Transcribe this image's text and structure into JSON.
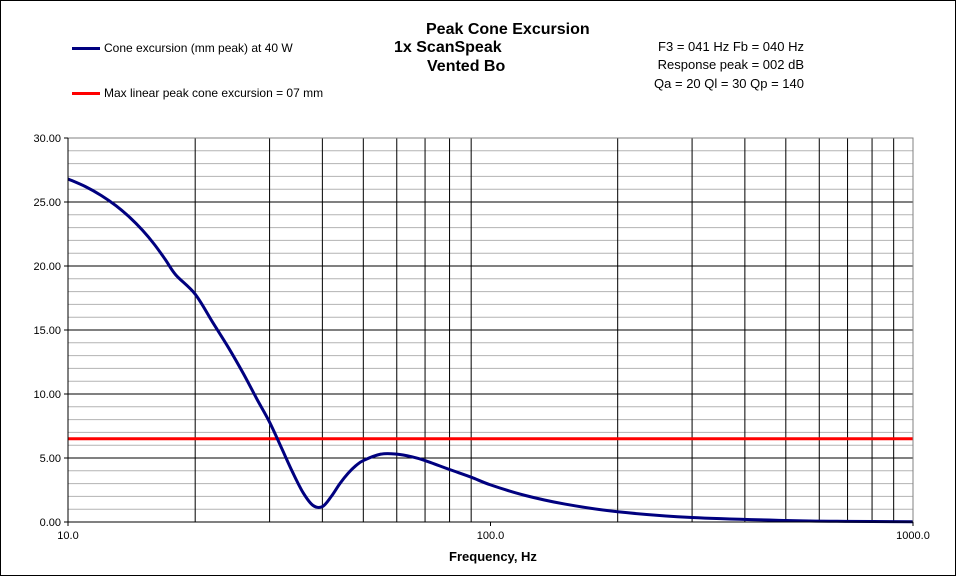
{
  "chart_data": {
    "type": "line",
    "title_lines": [
      "Peak Cone Excursion",
      "1x ScanSpeak",
      "Vented Bo"
    ],
    "xlabel": "Frequency, Hz",
    "ylabel": "",
    "x_scale": "log",
    "xlim": [
      10,
      1000
    ],
    "ylim": [
      0,
      30
    ],
    "x_tick_labels": [
      "10.0",
      "100.0",
      "1000.0"
    ],
    "x_ticks": [
      10,
      100,
      1000
    ],
    "y_tick_labels": [
      "0.00",
      "5.00",
      "10.00",
      "15.00",
      "20.00",
      "25.00",
      "30.00"
    ],
    "y_ticks": [
      0,
      5,
      10,
      15,
      20,
      25,
      30
    ],
    "grid": true,
    "legend_position": "top-left",
    "info_lines": [
      "F3 = 041 Hz  Fb = 040 Hz",
      "Response  peak = 002 dB",
      "Qa = 20  Ql = 30  Qp = 140"
    ],
    "series": [
      {
        "name": "Cone excursion (mm peak) at 40 W",
        "color": "#00007f",
        "x": [
          10,
          11,
          12,
          13,
          14,
          15,
          16,
          17,
          18,
          20,
          22,
          24,
          26,
          28,
          30,
          32,
          34,
          36,
          38,
          40,
          42,
          44,
          46,
          48,
          50,
          55,
          60,
          65,
          70,
          80,
          90,
          100,
          120,
          150,
          200,
          300,
          500,
          700,
          1000
        ],
        "y": [
          26.8,
          26.2,
          25.5,
          24.7,
          23.8,
          22.8,
          21.7,
          20.5,
          19.3,
          17.8,
          15.6,
          13.6,
          11.6,
          9.6,
          7.8,
          5.8,
          3.9,
          2.3,
          1.3,
          1.2,
          2.0,
          3.0,
          3.8,
          4.4,
          4.8,
          5.3,
          5.3,
          5.1,
          4.8,
          4.1,
          3.5,
          2.9,
          2.1,
          1.4,
          0.8,
          0.35,
          0.12,
          0.05,
          0.02
        ]
      },
      {
        "name": "Max linear peak cone excursion = 07 mm",
        "color": "#ff0000",
        "x": [
          10,
          1000
        ],
        "y": [
          6.5,
          6.5
        ]
      }
    ]
  }
}
